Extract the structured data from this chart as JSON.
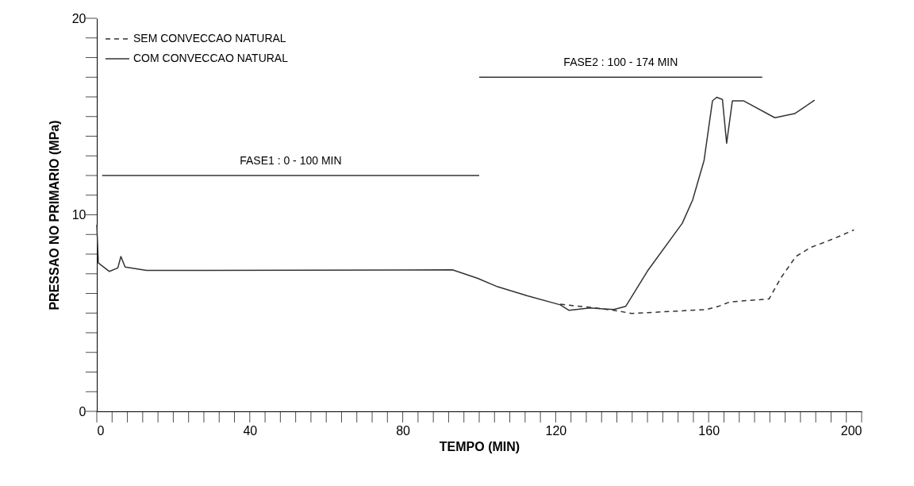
{
  "chart_data": {
    "type": "line",
    "xlabel": "TEMPO (MIN)",
    "ylabel": "PRESSAO NO PRIMARIO (MPa)",
    "xlim": [
      0,
      200
    ],
    "ylim": [
      0,
      20
    ],
    "xticks": [
      0,
      {
        "value": 4,
        "label": null
      },
      {
        "value": 8,
        "label": null
      },
      {
        "value": 12,
        "label": null
      },
      {
        "value": 16,
        "label": null
      },
      {
        "value": 20,
        "label": null
      },
      {
        "value": 24,
        "label": null
      },
      {
        "value": 28,
        "label": null
      },
      {
        "value": 32,
        "label": null
      },
      {
        "value": 36,
        "label": null
      },
      40,
      {
        "value": 44,
        "label": null
      },
      {
        "value": 48,
        "label": null
      },
      {
        "value": 52,
        "label": null
      },
      {
        "value": 56,
        "label": null
      },
      {
        "value": 60,
        "label": null
      },
      {
        "value": 64,
        "label": null
      },
      {
        "value": 68,
        "label": null
      },
      {
        "value": 72,
        "label": null
      },
      {
        "value": 76,
        "label": null
      },
      80,
      {
        "value": 84,
        "label": null
      },
      {
        "value": 88,
        "label": null
      },
      {
        "value": 92,
        "label": null
      },
      {
        "value": 96,
        "label": null
      },
      {
        "value": 100,
        "label": null
      },
      {
        "value": 104,
        "label": null
      },
      {
        "value": 108,
        "label": null
      },
      {
        "value": 112,
        "label": null
      },
      {
        "value": 116,
        "label": null
      },
      120,
      {
        "value": 124,
        "label": null
      },
      {
        "value": 128,
        "label": null
      },
      {
        "value": 132,
        "label": null
      },
      {
        "value": 136,
        "label": null
      },
      {
        "value": 140,
        "label": null
      },
      {
        "value": 144,
        "label": null
      },
      {
        "value": 148,
        "label": null
      },
      {
        "value": 152,
        "label": null
      },
      {
        "value": 156,
        "label": null
      },
      160,
      {
        "value": 164,
        "label": null
      },
      {
        "value": 168,
        "label": null
      },
      {
        "value": 172,
        "label": null
      },
      {
        "value": 176,
        "label": null
      },
      {
        "value": 180,
        "label": null
      },
      {
        "value": 184,
        "label": null
      },
      {
        "value": 188,
        "label": null
      },
      {
        "value": 192,
        "label": null
      },
      {
        "value": 196,
        "label": null
      },
      200
    ],
    "yticks": [
      0,
      {
        "value": 1,
        "label": null
      },
      {
        "value": 2,
        "label": null
      },
      {
        "value": 3,
        "label": null
      },
      {
        "value": 4,
        "label": null
      },
      {
        "value": 5,
        "label": null
      },
      {
        "value": 6,
        "label": null
      },
      {
        "value": 7,
        "label": null
      },
      {
        "value": 8,
        "label": null
      },
      {
        "value": 9,
        "label": null
      },
      10,
      {
        "value": 11,
        "label": null
      },
      {
        "value": 12,
        "label": null
      },
      {
        "value": 13,
        "label": null
      },
      {
        "value": 14,
        "label": null
      },
      {
        "value": 15,
        "label": null
      },
      {
        "value": 16,
        "label": null
      },
      {
        "value": 17,
        "label": null
      },
      {
        "value": 18,
        "label": null
      },
      {
        "value": 19,
        "label": null
      },
      20
    ],
    "grid": false,
    "legend": "top left",
    "series": [
      {
        "name": "SEM CONVECCAO NATURAL",
        "color": "#333333",
        "line_style": "dashed",
        "x": [
          121.2,
          129,
          135.2,
          139.9,
          147.7,
          159.4,
          162.5,
          165.6,
          175.8,
          178.9,
          182.8,
          186.7,
          192.9,
          198
        ],
        "values": [
          5.45,
          5.29,
          5.14,
          4.98,
          5.06,
          5.18,
          5.34,
          5.57,
          5.72,
          6.8,
          7.88,
          8.34,
          8.8,
          9.23
        ]
      },
      {
        "name": "COM CONVECCAO NATURAL",
        "color": "#333333",
        "line_style": "solid",
        "x": [
          0,
          0.4,
          3.3,
          5.5,
          6.3,
          7.4,
          13,
          93,
          99.6,
          104.8,
          112.6,
          121.2,
          123.5,
          129,
          135.2,
          138.3,
          144,
          153.1,
          155.8,
          158.8,
          161,
          162.1,
          163.6,
          164.7,
          166.2,
          169.1,
          177.3,
          182.5,
          187.7
        ],
        "values": [
          9.5,
          7.55,
          7.12,
          7.3,
          7.88,
          7.34,
          7.17,
          7.2,
          6.77,
          6.34,
          5.88,
          5.42,
          5.14,
          5.26,
          5.18,
          5.34,
          7.14,
          9.57,
          10.75,
          12.77,
          15.8,
          15.98,
          15.87,
          13.64,
          15.8,
          15.8,
          14.94,
          15.15,
          15.83
        ]
      },
      {
        "color": "#333333",
        "line_style": "solid",
        "x": [
          1.4,
          100
        ],
        "values": [
          12,
          12
        ]
      },
      {
        "color": "#333333",
        "line_style": "solid",
        "x": [
          100,
          174
        ],
        "values": [
          17,
          17
        ]
      }
    ],
    "annotations": [
      "FASE1 : 0 - 100 MIN",
      "FASE2 : 100 - 174 MIN"
    ]
  }
}
